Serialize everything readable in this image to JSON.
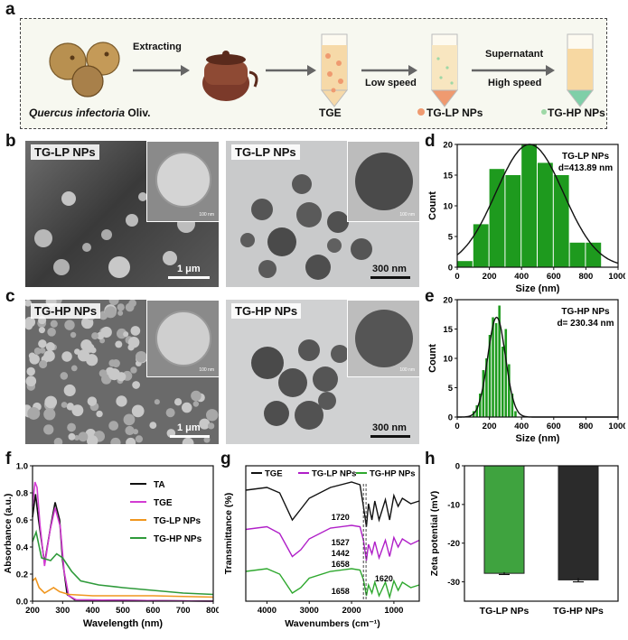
{
  "panel_letters": {
    "a": "a",
    "b": "b",
    "c": "c",
    "d": "d",
    "e": "e",
    "f": "f",
    "g": "g",
    "h": "h"
  },
  "flow": {
    "source_label_italic": "Quercus infectoria",
    "source_label_rest": " Oliv.",
    "extracting": "Extracting",
    "tge": "TGE",
    "low_speed": "Low speed",
    "tglp": "TG-LP NPs",
    "supernatant": "Supernatant",
    "high_speed": "High speed",
    "tghp": "TG-HP NPs"
  },
  "micrographs": {
    "b_sem": {
      "tag": "TG-LP NPs",
      "inset_scale": "100 nm",
      "scale": "1 μm"
    },
    "b_tem": {
      "tag": "TG-LP NPs",
      "inset_scale": "100 nm",
      "scale": "300 nm"
    },
    "c_sem": {
      "tag": "TG-HP NPs",
      "inset_scale": "100 nm",
      "scale": "1 μm"
    },
    "c_tem": {
      "tag": "TG-HP NPs",
      "inset_scale": "100 nm",
      "scale": "300 nm"
    }
  },
  "chart_data": [
    {
      "id": "d",
      "type": "bar",
      "xlabel": "Size (nm)",
      "ylabel": "Count",
      "xlim": [
        0,
        1000
      ],
      "ylim": [
        0,
        20
      ],
      "xticks": [
        0,
        200,
        400,
        600,
        800,
        1000
      ],
      "yticks": [
        0,
        5,
        10,
        15,
        20
      ],
      "annotation": [
        "TG-LP NPs",
        "d=413.89 nm"
      ],
      "bin_centers": [
        50,
        150,
        250,
        350,
        450,
        550,
        650,
        750,
        850
      ],
      "values": [
        1,
        7,
        16,
        15,
        20,
        17,
        15,
        4,
        4
      ],
      "fit": {
        "type": "gaussian",
        "center": 450,
        "sigma": 210,
        "peak": 20
      },
      "colors": {
        "bar": "#1e9a1e",
        "fit": "#111111"
      }
    },
    {
      "id": "e",
      "type": "bar",
      "xlabel": "Size (nm)",
      "ylabel": "Count",
      "xlim": [
        0,
        1000
      ],
      "ylim": [
        0,
        20
      ],
      "xticks": [
        0,
        200,
        400,
        600,
        800,
        1000
      ],
      "yticks": [
        0,
        5,
        10,
        15,
        20
      ],
      "annotation": [
        "TG-HP NPs",
        "d= 230.34 nm"
      ],
      "bin_centers": [
        105,
        125,
        145,
        165,
        185,
        205,
        225,
        245,
        265,
        285,
        305,
        325,
        345,
        365
      ],
      "values": [
        1,
        2,
        4,
        8,
        10,
        14,
        17,
        16,
        19,
        12,
        15,
        9,
        4,
        1
      ],
      "fit": {
        "type": "gaussian",
        "center": 245,
        "sigma": 55,
        "peak": 17
      },
      "colors": {
        "bar": "#1e9a1e",
        "fit": "#111111"
      }
    },
    {
      "id": "f",
      "type": "line",
      "xlabel": "Wavelength (nm)",
      "ylabel": "Absorbance (a.u.)",
      "xlim": [
        200,
        800
      ],
      "ylim": [
        0,
        1.0
      ],
      "xticks": [
        200,
        300,
        400,
        500,
        600,
        700,
        800
      ],
      "yticks": [
        0.0,
        0.2,
        0.4,
        0.6,
        0.8,
        1.0
      ],
      "legend_position": "top-right",
      "series": [
        {
          "name": "TA",
          "color": "#111111",
          "points": [
            [
              200,
              0.62
            ],
            [
              210,
              0.79
            ],
            [
              220,
              0.6
            ],
            [
              240,
              0.28
            ],
            [
              260,
              0.55
            ],
            [
              275,
              0.73
            ],
            [
              290,
              0.6
            ],
            [
              300,
              0.3
            ],
            [
              315,
              0.05
            ],
            [
              340,
              0.01
            ],
            [
              800,
              0.0
            ]
          ]
        },
        {
          "name": "TGE",
          "color": "#d23cd2",
          "points": [
            [
              200,
              0.7
            ],
            [
              208,
              0.88
            ],
            [
              215,
              0.84
            ],
            [
              225,
              0.56
            ],
            [
              240,
              0.26
            ],
            [
              258,
              0.52
            ],
            [
              275,
              0.69
            ],
            [
              292,
              0.55
            ],
            [
              305,
              0.22
            ],
            [
              320,
              0.04
            ],
            [
              345,
              0.01
            ],
            [
              800,
              0.0
            ]
          ]
        },
        {
          "name": "TG-LP NPs",
          "color": "#f0961e",
          "points": [
            [
              200,
              0.15
            ],
            [
              210,
              0.17
            ],
            [
              222,
              0.1
            ],
            [
              240,
              0.06
            ],
            [
              270,
              0.1
            ],
            [
              290,
              0.07
            ],
            [
              320,
              0.05
            ],
            [
              400,
              0.04
            ],
            [
              600,
              0.04
            ],
            [
              800,
              0.03
            ]
          ]
        },
        {
          "name": "TG-HP NPs",
          "color": "#2e9a3a",
          "points": [
            [
              200,
              0.44
            ],
            [
              212,
              0.51
            ],
            [
              230,
              0.32
            ],
            [
              260,
              0.3
            ],
            [
              280,
              0.35
            ],
            [
              300,
              0.32
            ],
            [
              330,
              0.22
            ],
            [
              360,
              0.15
            ],
            [
              420,
              0.12
            ],
            [
              500,
              0.1
            ],
            [
              600,
              0.08
            ],
            [
              700,
              0.06
            ],
            [
              800,
              0.05
            ]
          ]
        }
      ]
    },
    {
      "id": "g",
      "type": "line",
      "xlabel": "Wavenumbers (cm⁻¹)",
      "ylabel": "Transmittance (%)",
      "xlim": [
        4500,
        400
      ],
      "xticks": [
        4000,
        3000,
        2000,
        1000
      ],
      "legend_position": "top",
      "annotations": [
        "1720",
        "1527",
        "1442",
        "1658",
        "1620",
        "1658"
      ],
      "series": [
        {
          "name": "TGE",
          "color": "#111111",
          "points": [
            [
              4500,
              0.82
            ],
            [
              4000,
              0.84
            ],
            [
              3700,
              0.8
            ],
            [
              3400,
              0.6
            ],
            [
              3200,
              0.68
            ],
            [
              3000,
              0.76
            ],
            [
              2500,
              0.84
            ],
            [
              2000,
              0.88
            ],
            [
              1800,
              0.86
            ],
            [
              1720,
              0.7
            ],
            [
              1650,
              0.55
            ],
            [
              1600,
              0.72
            ],
            [
              1520,
              0.6
            ],
            [
              1450,
              0.74
            ],
            [
              1350,
              0.6
            ],
            [
              1200,
              0.75
            ],
            [
              1100,
              0.6
            ],
            [
              1000,
              0.78
            ],
            [
              900,
              0.7
            ],
            [
              800,
              0.76
            ],
            [
              600,
              0.72
            ],
            [
              400,
              0.74
            ]
          ]
        },
        {
          "name": "TG-LP NPs",
          "color": "#b01fc8",
          "points": [
            [
              4500,
              0.53
            ],
            [
              4000,
              0.55
            ],
            [
              3700,
              0.5
            ],
            [
              3400,
              0.33
            ],
            [
              3200,
              0.38
            ],
            [
              3000,
              0.46
            ],
            [
              2500,
              0.54
            ],
            [
              2000,
              0.56
            ],
            [
              1800,
              0.55
            ],
            [
              1720,
              0.45
            ],
            [
              1650,
              0.3
            ],
            [
              1600,
              0.42
            ],
            [
              1520,
              0.35
            ],
            [
              1450,
              0.44
            ],
            [
              1350,
              0.32
            ],
            [
              1200,
              0.45
            ],
            [
              1100,
              0.33
            ],
            [
              1000,
              0.47
            ],
            [
              900,
              0.4
            ],
            [
              800,
              0.46
            ],
            [
              600,
              0.42
            ],
            [
              400,
              0.45
            ]
          ]
        },
        {
          "name": "TG-HP NPs",
          "color": "#2ea82e",
          "points": [
            [
              4500,
              0.22
            ],
            [
              4000,
              0.24
            ],
            [
              3700,
              0.2
            ],
            [
              3400,
              0.06
            ],
            [
              3200,
              0.1
            ],
            [
              3000,
              0.17
            ],
            [
              2500,
              0.22
            ],
            [
              2000,
              0.24
            ],
            [
              1800,
              0.23
            ],
            [
              1720,
              0.16
            ],
            [
              1650,
              0.04
            ],
            [
              1600,
              0.12
            ],
            [
              1520,
              0.06
            ],
            [
              1450,
              0.14
            ],
            [
              1350,
              0.04
            ],
            [
              1200,
              0.14
            ],
            [
              1100,
              0.03
            ],
            [
              1000,
              0.15
            ],
            [
              900,
              0.08
            ],
            [
              800,
              0.14
            ],
            [
              600,
              0.1
            ],
            [
              400,
              0.12
            ]
          ]
        }
      ]
    },
    {
      "id": "h",
      "type": "bar",
      "ylabel": "Zeta potential (mV)",
      "ylim": [
        -35,
        0
      ],
      "yticks": [
        0,
        -10,
        -20,
        -30
      ],
      "categories": [
        "TG-LP NPs",
        "TG-HP NPs"
      ],
      "values": [
        -27.8,
        -29.5
      ],
      "errors": [
        0.3,
        0.5
      ],
      "colors": [
        "#3fa33f",
        "#2b2b2b"
      ]
    }
  ]
}
